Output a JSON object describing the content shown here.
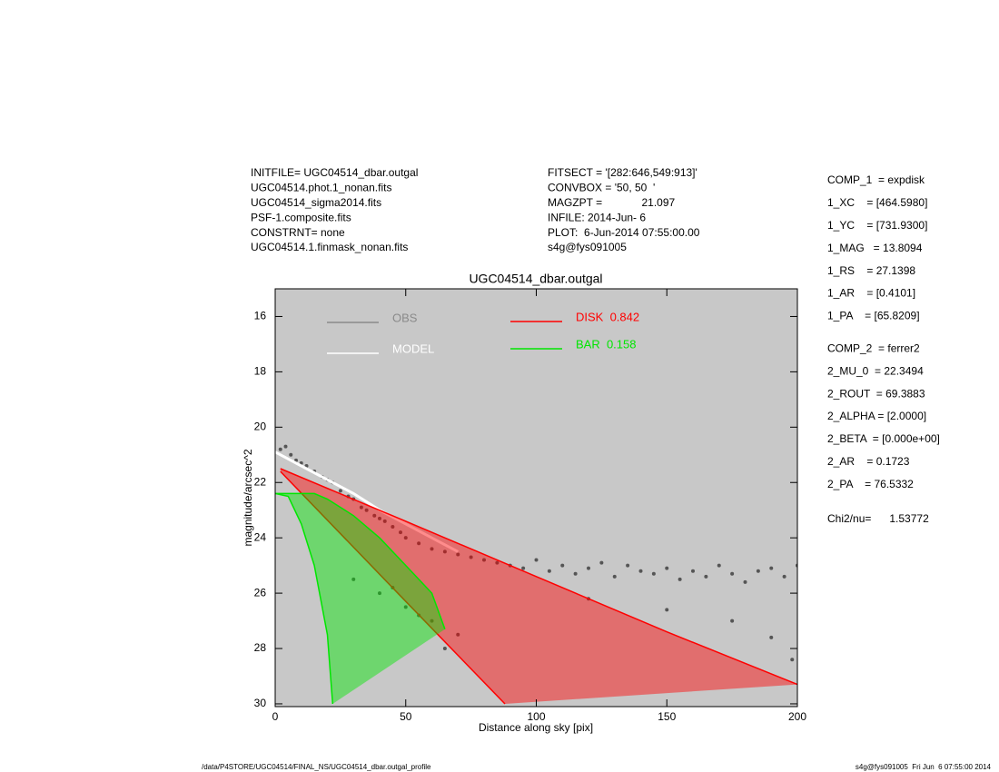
{
  "header": {
    "left": [
      "INITFILE= UGC04514_dbar.outgal",
      "UGC04514.phot.1_nonan.fits",
      "UGC04514_sigma2014.fits",
      "PSF-1.composite.fits",
      "CONSTRNT= none",
      "UGC04514.1.finmask_nonan.fits"
    ],
    "middle": [
      "FITSECT = '[282:646,549:913]'",
      "CONVBOX = '50, 50  '",
      "MAGZPT =             21.097",
      "INFILE: 2014-Jun- 6",
      "PLOT:  6-Jun-2014 07:55:00.00",
      "s4g@fys091005"
    ]
  },
  "parameters": [
    "COMP_1  = expdisk",
    "1_XC    = [464.5980]",
    "1_YC    = [731.9300]",
    "1_MAG   = 13.8094",
    "1_RS    = 27.1398",
    "1_AR    = [0.4101]",
    "1_PA    = [65.8209]",
    "COMP_2  = ferrer2",
    "2_MU_0  = 22.3494",
    "2_ROUT  = 69.3883",
    "2_ALPHA = [2.0000]",
    "2_BETA  = [0.000e+00]",
    "2_AR    = 0.1723",
    "2_PA    = 76.5332",
    "Chi2/nu=      1.53772"
  ],
  "footer": {
    "left": "/data/P4STORE/UGC04514/FINAL_NS/UGC04514_dbar.outgal_profile",
    "right": "s4g@fys091005  Fri Jun  6 07:55:00 2014"
  },
  "chart_data": {
    "type": "scatter",
    "title": "UGC04514_dbar.outgal",
    "x_label": "Distance along sky [pix]",
    "y_label": "magnitude/arcsec^2",
    "xlim": [
      0,
      200
    ],
    "xticks": [
      0,
      50,
      100,
      150,
      200
    ],
    "ylim": [
      30.1,
      15
    ],
    "yticks": [
      16,
      18,
      20,
      22,
      24,
      26,
      28,
      30
    ],
    "background": "#c8c8c8",
    "series": [
      {
        "name": "OBS",
        "color": "#555555",
        "legend_color": "#8a8a8a",
        "style": "points",
        "x": [
          2,
          4,
          6,
          8,
          10,
          12,
          15,
          18,
          20,
          22,
          25,
          28,
          30,
          33,
          35,
          38,
          40,
          42,
          45,
          48,
          50,
          55,
          60,
          65,
          70,
          75,
          80,
          85,
          90,
          95,
          100,
          105,
          110,
          115,
          120,
          125,
          130,
          135,
          140,
          145,
          150,
          155,
          160,
          165,
          170,
          175,
          180,
          185,
          190,
          195,
          200,
          30,
          40,
          50,
          60,
          70,
          45,
          55,
          65,
          120,
          150,
          175,
          190,
          198
        ],
        "values": [
          20.8,
          20.7,
          21.0,
          21.2,
          21.3,
          21.4,
          21.6,
          21.8,
          21.9,
          22.0,
          22.3,
          22.5,
          22.6,
          22.9,
          23.0,
          23.2,
          23.3,
          23.4,
          23.6,
          23.8,
          24.0,
          24.2,
          24.4,
          24.5,
          24.6,
          24.7,
          24.8,
          24.9,
          25.0,
          25.1,
          24.8,
          25.2,
          25.0,
          25.3,
          25.1,
          24.9,
          25.4,
          25.0,
          25.2,
          25.3,
          25.1,
          25.5,
          25.2,
          25.4,
          25.0,
          25.3,
          25.6,
          25.2,
          25.1,
          25.4,
          25.0,
          25.5,
          26.0,
          26.5,
          27.0,
          27.5,
          25.8,
          26.8,
          28.0,
          26.2,
          26.6,
          27.0,
          27.6,
          28.4
        ]
      },
      {
        "name": "MODEL",
        "color": "#ffffff",
        "style": "line",
        "x": [
          0,
          10,
          20,
          30,
          40,
          50,
          60,
          70
        ],
        "values": [
          20.9,
          21.4,
          21.9,
          22.4,
          23.0,
          23.5,
          24.0,
          24.5
        ]
      },
      {
        "name": "DISK  0.842",
        "color": "#ff0000",
        "style": "band",
        "x": [
          2,
          50,
          100,
          150,
          200
        ],
        "values": [
          21.5,
          23.4,
          25.4,
          27.4,
          29.3
        ],
        "lower_x": [
          2,
          50,
          88
        ],
        "lower_values": [
          21.6,
          26.3,
          30.0
        ]
      },
      {
        "name": "BAR  0.158",
        "color": "#00e600",
        "style": "band",
        "x": [
          0,
          15,
          20,
          30,
          40,
          50,
          60,
          65
        ],
        "values": [
          22.4,
          22.4,
          22.6,
          23.2,
          24.0,
          25.0,
          26.0,
          27.3
        ],
        "lower_x": [
          0,
          5,
          10,
          15,
          20,
          22
        ],
        "lower_values": [
          22.4,
          22.5,
          23.5,
          25.0,
          27.5,
          30.0
        ]
      }
    ]
  }
}
